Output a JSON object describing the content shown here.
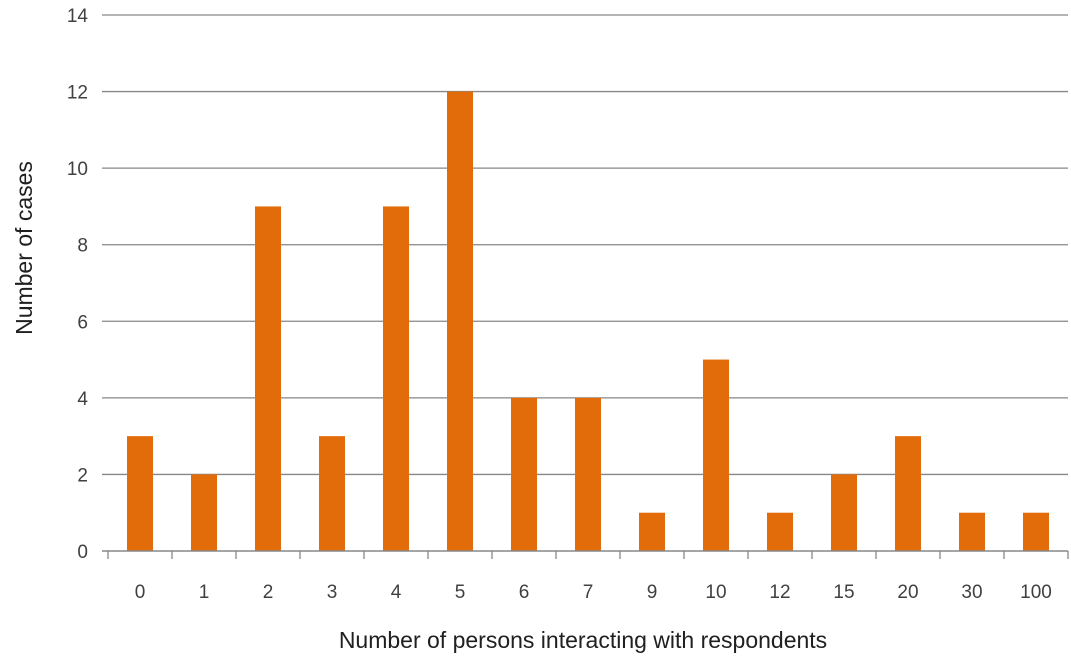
{
  "chart_data": {
    "type": "bar",
    "categories": [
      "0",
      "1",
      "2",
      "3",
      "4",
      "5",
      "6",
      "7",
      "9",
      "10",
      "12",
      "15",
      "20",
      "30",
      "100"
    ],
    "values": [
      3,
      2,
      9,
      3,
      9,
      12,
      4,
      4,
      1,
      5,
      1,
      2,
      3,
      1,
      1
    ],
    "xlabel": "Number of  persons interacting with respondents",
    "ylabel": "Number of  cases",
    "ylim": [
      0,
      14
    ],
    "yticks": [
      "0",
      "2",
      "4",
      "6",
      "8",
      "10",
      "12",
      "14"
    ],
    "grid": true,
    "legend": "none",
    "bar_color": "#E36C0A",
    "grid_color": "#878787"
  }
}
